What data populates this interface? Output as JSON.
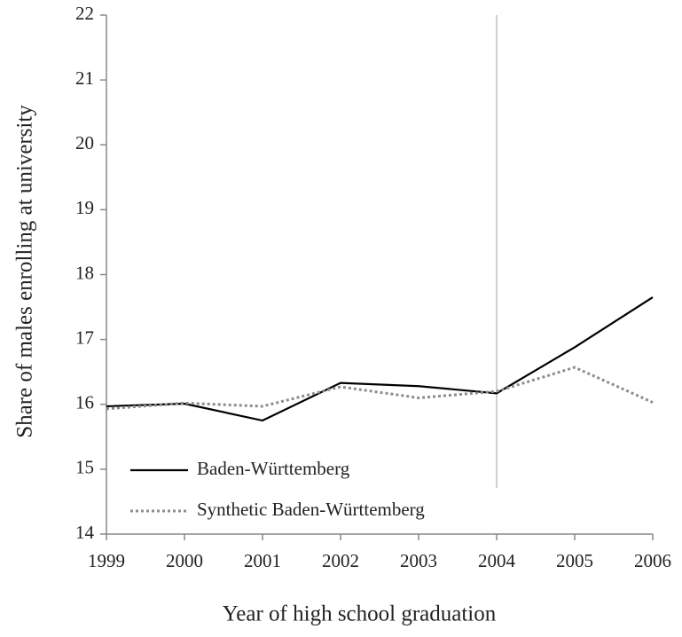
{
  "chart_data": {
    "type": "line",
    "xlabel": "Year of high school graduation",
    "ylabel": "Share of males enrolling at university",
    "x": [
      1999,
      2000,
      2001,
      2002,
      2003,
      2004,
      2005,
      2006
    ],
    "series": [
      {
        "name": "Baden-Württemberg",
        "color": "#000000",
        "style": "solid",
        "values": [
          15.97,
          16.01,
          15.75,
          16.33,
          16.28,
          16.17,
          16.88,
          17.65
        ]
      },
      {
        "name": "Synthetic Baden-Württemberg",
        "color": "#8c8c8c",
        "style": "dotted",
        "values": [
          15.93,
          16.02,
          15.97,
          16.27,
          16.1,
          16.2,
          16.57,
          16.03
        ]
      }
    ],
    "xlim": [
      1999,
      2006
    ],
    "xticks": [
      1999,
      2000,
      2001,
      2002,
      2003,
      2004,
      2005,
      2006
    ],
    "ylim": [
      14,
      22
    ],
    "yticks": [
      14,
      15,
      16,
      17,
      18,
      19,
      20,
      21,
      22
    ],
    "vline": 2004,
    "vline_color": "#a0a0a0",
    "legend": "lower left"
  }
}
